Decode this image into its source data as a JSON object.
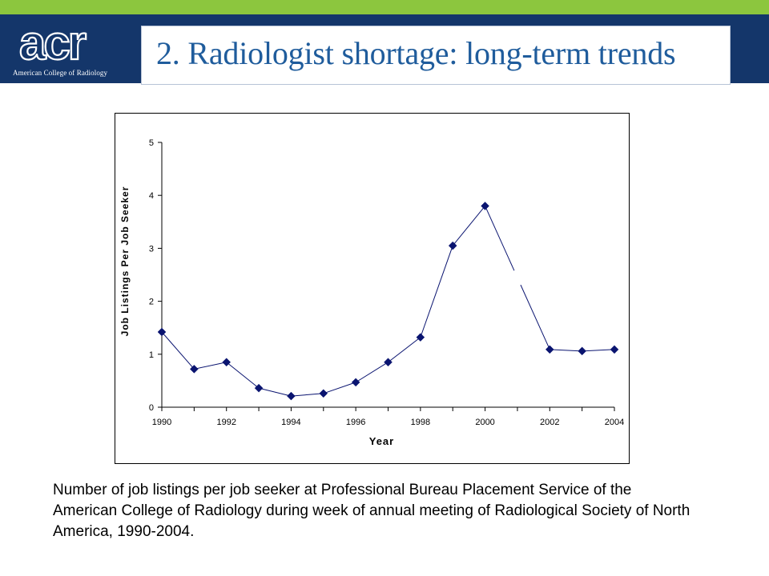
{
  "header": {
    "logo_text": "acr",
    "logo_subtitle": "American College of Radiology",
    "title": "2. Radiologist shortage: long-term trends"
  },
  "colors": {
    "accent_green": "#8cc63e",
    "header_navy": "#14366a",
    "title_blue": "#1f5c9c",
    "series_marker": "#0a1470"
  },
  "chart_data": {
    "type": "line",
    "title": "",
    "xlabel": "Year",
    "ylabel": "Job Listings Per Job Seeker",
    "xlim": [
      1990,
      2004
    ],
    "ylim": [
      0,
      5
    ],
    "x_ticks": [
      "1990",
      "1992",
      "1994",
      "1996",
      "1998",
      "2000",
      "2002",
      "2004"
    ],
    "y_ticks": [
      "0",
      "1",
      "2",
      "3",
      "4",
      "5"
    ],
    "grid": false,
    "legend": "none",
    "marker": "diamond",
    "x": [
      1990,
      1991,
      1992,
      1993,
      1994,
      1995,
      1996,
      1997,
      1998,
      1999,
      2000,
      2001,
      2002,
      2003,
      2004
    ],
    "y": [
      1.42,
      0.72,
      0.85,
      0.36,
      0.21,
      0.26,
      0.47,
      0.85,
      1.32,
      3.05,
      3.8,
      null,
      1.09,
      1.06,
      1.09
    ]
  },
  "caption": "Number of job listings per job seeker at Professional Bureau Placement Service of the American College of Radiology during week of annual meeting of Radiological Society of North America, 1990-2004."
}
